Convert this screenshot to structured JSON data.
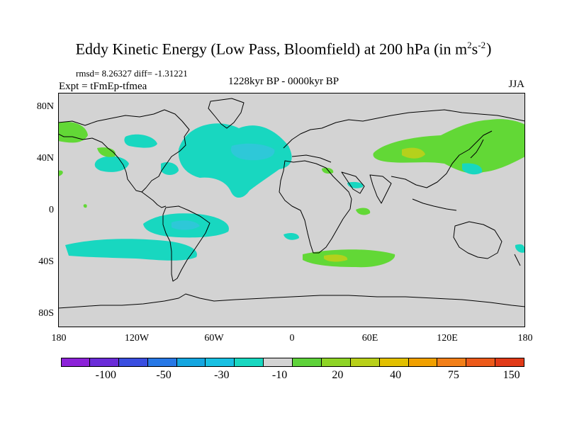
{
  "title": {
    "main": "Eddy Kinetic Energy (Low Pass, Bloomfield) at 200 hPa (in m",
    "exp1": "2",
    "mid": "s",
    "exp2": "-2",
    "end": ")"
  },
  "stats": "rmsd= 8.26327 diff= -1.31221",
  "experiment": "Expt = tFmEp-tfmea",
  "period": "1228kyr BP - 0000kyr BP",
  "season": "JJA",
  "axes": {
    "x_ticks": [
      "180",
      "120W",
      "60W",
      "0",
      "60E",
      "120E",
      "180"
    ],
    "y_ticks": [
      "80N",
      "40N",
      "0",
      "40S",
      "80S"
    ],
    "xlim": [
      -180,
      180
    ],
    "ylim": [
      -90,
      90
    ]
  },
  "colors": {
    "ocean_land_background": "#d3d3d3",
    "coastline": "#000000",
    "cyan_band": "#18d7c0",
    "light_cyan": "#2ec8d8",
    "green": "#62d836",
    "yellow_green": "#b4d11c"
  },
  "colorbar": {
    "colors": [
      "#8c22d8",
      "#6a2cd8",
      "#3a4ee0",
      "#2778e6",
      "#14a6e0",
      "#18c0e2",
      "#18d7c0",
      "#d3d3d3",
      "#5ed23a",
      "#8ed425",
      "#b8d019",
      "#e2c000",
      "#f0a000",
      "#f27f18",
      "#ec5a1a",
      "#e13a18"
    ],
    "labels": [
      "-100",
      "-50",
      "-30",
      "-10",
      "20",
      "40",
      "75",
      "150"
    ]
  }
}
